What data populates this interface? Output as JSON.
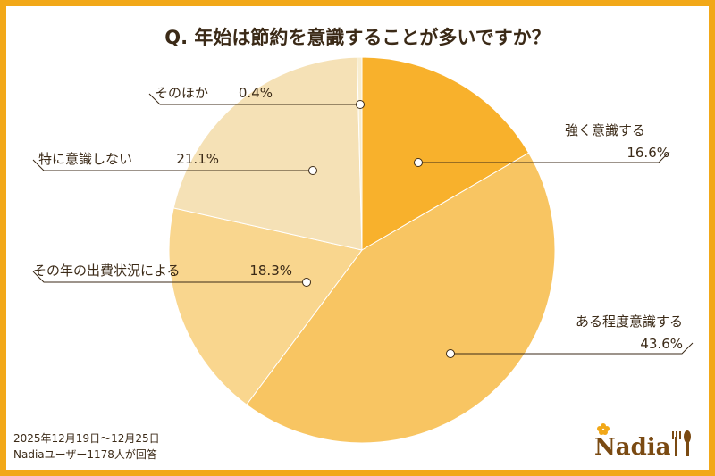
{
  "chart_data": {
    "type": "pie",
    "title": "Q. 年始は節約を意識することが多いですか？",
    "slices": [
      {
        "label": "強く意識する",
        "value": 16.6,
        "value_text": "16.6%",
        "color": "#f8b12c"
      },
      {
        "label": "ある程度意識する",
        "value": 43.6,
        "value_text": "43.6%",
        "color": "#f8c562"
      },
      {
        "label": "その年の出費状況による",
        "value": 18.3,
        "value_text": "18.3%",
        "color": "#f9d68e"
      },
      {
        "label": "特に意識しない",
        "value": 21.1,
        "value_text": "21.1%",
        "color": "#f5e1b6"
      },
      {
        "label": "そのほか",
        "value": 0.4,
        "value_text": "0.4%",
        "color": "#f8edcf"
      }
    ],
    "start_angle_deg": 0,
    "direction": "clockwise"
  },
  "footer": {
    "date_range": "2025年12月19日〜12月25日",
    "respondents": "Nadiaユーザー1178人が回答"
  },
  "brand": {
    "logo_text": "Nadia",
    "color": "#f2a818"
  }
}
